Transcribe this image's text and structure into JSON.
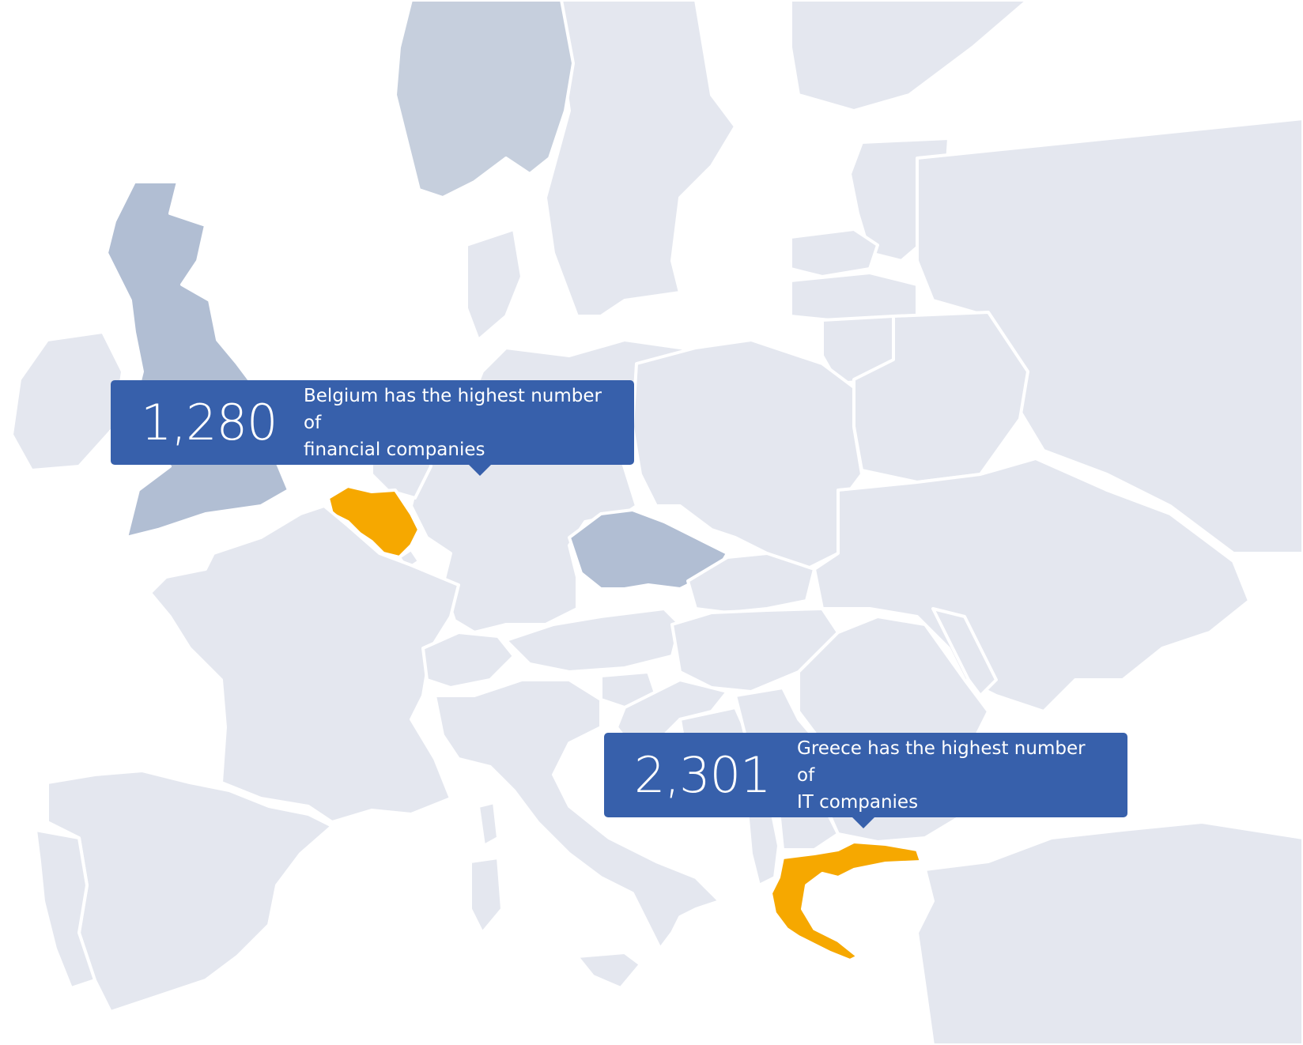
{
  "colors": {
    "land": "#e4e7ef",
    "highlight_dark": "#b1bed3",
    "highlight_scandinavia": "#c6cfdd",
    "accent_orange": "#f6a800",
    "callout_bg": "#3760ab",
    "border": "#ffffff"
  },
  "regions": {
    "highlighted_orange": [
      "Belgium",
      "Greece"
    ],
    "highlighted_dark": [
      "United Kingdom",
      "Czech Republic",
      "Norway"
    ]
  },
  "callouts": [
    {
      "value": "1,280",
      "text_line1": "Belgium has the highest number of",
      "text_line2": "financial companies"
    },
    {
      "value": "2,301",
      "text_line1": "Greece has the highest number of",
      "text_line2": "IT companies"
    }
  ]
}
